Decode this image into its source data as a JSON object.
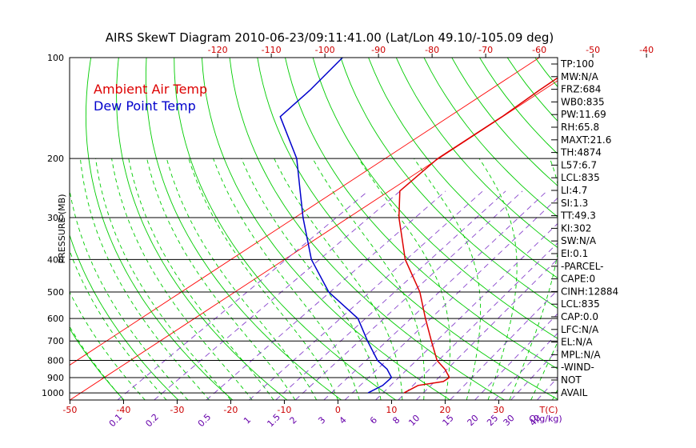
{
  "title": "AIRS SkewT Diagram 2010-06-23/09:11:41.00 (Lat/Lon 49.10/-105.09 deg)",
  "colors": {
    "temp": "#dd0000",
    "dew": "#0000cc",
    "isotherm": "#ff0000",
    "dry_adiabat": "#00cc00",
    "moist_adiabat": "#00cc00",
    "mixing_ratio": "#8844cc",
    "axis": "#000000",
    "tick_red": "#cc0000",
    "tick_purple": "#6600aa"
  },
  "legend": {
    "temp": "Ambient Air Temp",
    "dew": "Dew Point Temp"
  },
  "chart_data": {
    "type": "skewt",
    "title": "AIRS SkewT Diagram 2010-06-23/09:11:41.00 (Lat/Lon 49.10/-105.09 deg)",
    "ylabel": "PRESSURE (MB)",
    "y_scale": "log",
    "y_reversed": true,
    "ylim": [
      1050,
      100
    ],
    "pressure_ticks": [
      100,
      200,
      300,
      400,
      500,
      600,
      700,
      800,
      900,
      1000
    ],
    "top_temp_ticks": [
      -120,
      -110,
      -100,
      -90,
      -80,
      -70,
      -60,
      -50,
      -40
    ],
    "bottom_temp_ticks": [
      -50,
      -40,
      -30,
      -20,
      -10,
      0,
      10,
      20,
      30
    ],
    "bottom_temp_unit": "T(C)",
    "mixing_ratio_labels": [
      "0.1",
      "0.2",
      "0.5",
      "1",
      "1.5",
      "2",
      "3",
      "4",
      "6",
      "8",
      "10",
      "15",
      "20",
      "25",
      "30",
      "40"
    ],
    "mixing_ratio_unit": "Q(g/kg)",
    "series": [
      {
        "name": "Ambient Air Temp",
        "points": [
          [
            1000,
            10.3
          ],
          [
            950,
            10.8
          ],
          [
            925,
            14.4
          ],
          [
            900,
            14.4
          ],
          [
            850,
            11.2
          ],
          [
            800,
            7.2
          ],
          [
            700,
            0.6
          ],
          [
            600,
            -6.9
          ],
          [
            500,
            -15.5
          ],
          [
            400,
            -27.5
          ],
          [
            300,
            -40.6
          ],
          [
            250,
            -48.0
          ],
          [
            200,
            -50.2
          ],
          [
            150,
            -50.1
          ],
          [
            125,
            -50.7
          ],
          [
            100,
            -51.0
          ]
        ]
      },
      {
        "name": "Dew Point Temp",
        "points": [
          [
            1000,
            3.6
          ],
          [
            950,
            4.2
          ],
          [
            900,
            3.6
          ],
          [
            850,
            0.4
          ],
          [
            800,
            -3.9
          ],
          [
            700,
            -11.3
          ],
          [
            600,
            -19.5
          ],
          [
            500,
            -32.5
          ],
          [
            400,
            -45.0
          ],
          [
            300,
            -58.5
          ],
          [
            250,
            -66.6
          ],
          [
            200,
            -76.5
          ],
          [
            150,
            -91.5
          ],
          [
            125,
            -93.5
          ],
          [
            100,
            -96.7
          ]
        ]
      }
    ]
  },
  "indices": [
    "TP:100",
    "MW:N/A",
    "FRZ:684",
    "WB0:835",
    "PW:11.69",
    "RH:65.8",
    "MAXT:21.6",
    "TH:4874",
    "L57:6.7",
    "LCL:835",
    "LI:4.7",
    "SI:1.3",
    "TT:49.3",
    "KI:302",
    "SW:N/A",
    "EI:0.1",
    "-PARCEL-",
    "CAPE:0",
    "CINH:12884",
    "LCL:835",
    "CAP:0.0",
    "LFC:N/A",
    "EL:N/A",
    "MPL:N/A",
    "-WIND-",
    "NOT",
    "AVAIL"
  ]
}
